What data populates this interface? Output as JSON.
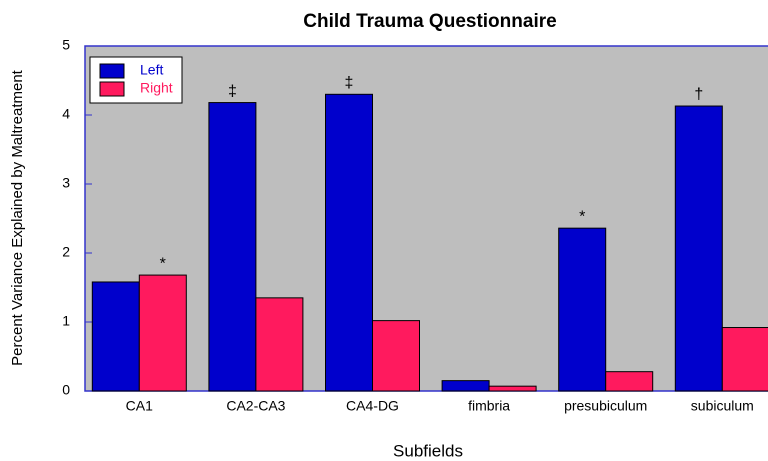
{
  "chart_data": {
    "type": "bar",
    "title": "Child Trauma Questionnaire",
    "x_label": "Subfields",
    "y_label": "Percent Variance Explained by Maltreatment",
    "categories": [
      "CA1",
      "CA2-CA3",
      "CA4-DG",
      "fimbria",
      "presubiculum",
      "subiculum"
    ],
    "series": [
      {
        "name": "Left",
        "color": "#0000cc",
        "values": [
          1.58,
          4.18,
          4.3,
          0.15,
          2.36,
          4.13
        ],
        "markers": [
          null,
          "‡",
          "‡",
          null,
          "*",
          "†"
        ]
      },
      {
        "name": "Right",
        "color": "#ff1a5e",
        "values": [
          1.68,
          1.35,
          1.02,
          0.07,
          0.28,
          0.92
        ],
        "markers": [
          "*",
          null,
          null,
          null,
          null,
          null
        ]
      }
    ],
    "ylim": [
      0,
      5
    ],
    "yticks": [
      0,
      1,
      2,
      3,
      4,
      5
    ],
    "legend": "upper left"
  }
}
